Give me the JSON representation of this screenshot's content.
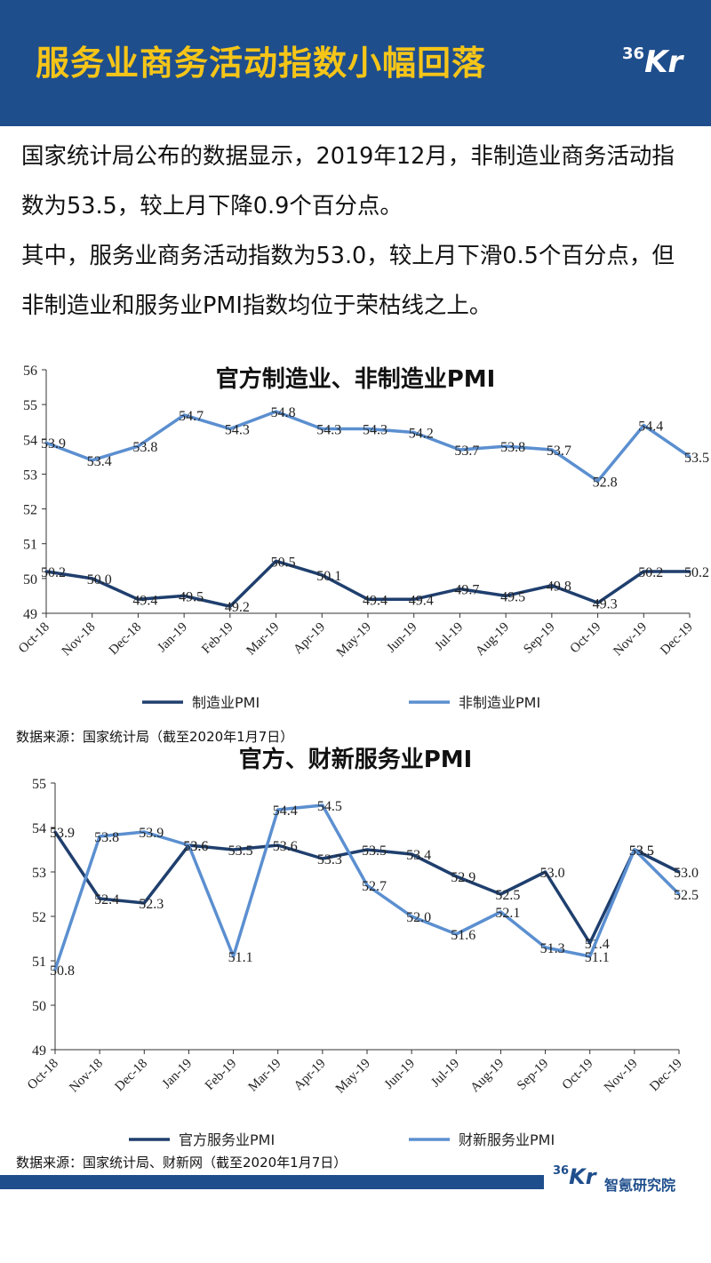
{
  "header": {
    "title": "服务业商务活动指数小幅回落",
    "logo_num": "36",
    "logo_letters": "Kr"
  },
  "intro": {
    "paragraph1": "国家统计局公布的数据显示，2019年12月，非制造业商务活动指数为53.5，较上月下降0.9个百分点。",
    "paragraph2": "其中，服务业商务活动指数为53.0，较上月下滑0.5个百分点，但非制造业和服务业PMI指数均位于荣枯线之上。"
  },
  "chart1_source": "数据来源：国家统计局（截至2020年1月7日）",
  "chart2_source": "数据来源：国家统计局、财新网（截至2020年1月7日）",
  "footer": {
    "logo_num": "36",
    "logo_letters": "Kr",
    "text": "智氪研究院"
  },
  "colors": {
    "header_bg": "#1f4e8c",
    "title": "#f5c518",
    "dark_series": "#1f3f6e",
    "light_series": "#5b8fd0"
  },
  "chart_data": [
    {
      "type": "line",
      "title": "官方制造业、非制造业PMI",
      "categories": [
        "Oct-18",
        "Nov-18",
        "Dec-18",
        "Jan-19",
        "Feb-19",
        "Mar-19",
        "Apr-19",
        "May-19",
        "Jun-19",
        "Jul-19",
        "Aug-19",
        "Sep-19",
        "Oct-19",
        "Nov-19",
        "Dec-19"
      ],
      "ylim": [
        49,
        56
      ],
      "yticks": [
        "49",
        "50",
        "51",
        "52",
        "53",
        "54",
        "55",
        "56"
      ],
      "legend_position": "bottom",
      "series": [
        {
          "name": "制造业PMI",
          "values": [
            50.2,
            50.0,
            49.4,
            49.5,
            49.2,
            50.5,
            50.1,
            49.4,
            49.4,
            49.7,
            49.5,
            49.8,
            49.3,
            50.2,
            50.2
          ],
          "labels": [
            "50.2",
            "50.0",
            "49.4",
            "49.5",
            "49.2",
            "50.5",
            "50.1",
            "49.4",
            "49.4",
            "49.7",
            "49.5",
            "49.8",
            "49.3",
            "50.2",
            "50.2"
          ]
        },
        {
          "name": "非制造业PMI",
          "values": [
            53.9,
            53.4,
            53.8,
            54.7,
            54.3,
            54.8,
            54.3,
            54.3,
            54.2,
            53.7,
            53.8,
            53.7,
            52.8,
            54.4,
            53.5
          ],
          "labels": [
            "53.9",
            "53.4",
            "53.8",
            "54.7",
            "54.3",
            "54.8",
            "54.3",
            "54.3",
            "54.2",
            "53.7",
            "53.8",
            "53.7",
            "52.8",
            "54.4",
            "53.5"
          ]
        }
      ]
    },
    {
      "type": "line",
      "title": "官方、财新服务业PMI",
      "categories": [
        "Oct-18",
        "Nov-18",
        "Dec-18",
        "Jan-19",
        "Feb-19",
        "Mar-19",
        "Apr-19",
        "May-19",
        "Jun-19",
        "Jul-19",
        "Aug-19",
        "Sep-19",
        "Oct-19",
        "Nov-19",
        "Dec-19"
      ],
      "ylim": [
        49,
        55
      ],
      "yticks": [
        "49",
        "50",
        "51",
        "52",
        "53",
        "54",
        "55"
      ],
      "legend_position": "bottom",
      "series": [
        {
          "name": "官方服务业PMI",
          "values": [
            53.9,
            52.4,
            52.3,
            53.6,
            53.5,
            53.6,
            53.3,
            53.5,
            53.4,
            52.9,
            52.5,
            53.0,
            51.4,
            53.5,
            53.0
          ],
          "labels": [
            "53.9",
            "52.4",
            "52.3",
            "53.6",
            "53.5",
            "53.6",
            "53.3",
            "53.5",
            "53.4",
            "52.9",
            "52.5",
            "53.0",
            "51.4",
            "53.5",
            "53.0"
          ]
        },
        {
          "name": "财新服务业PMI",
          "values": [
            50.8,
            53.8,
            53.9,
            53.6,
            51.1,
            54.4,
            54.5,
            52.7,
            52.0,
            51.6,
            52.1,
            51.3,
            51.1,
            53.5,
            52.5
          ],
          "labels": [
            "50.8",
            "53.8",
            "53.9",
            "53.6",
            "51.1",
            "54.4",
            "54.5",
            "52.7",
            "52.0",
            "51.6",
            "52.1",
            "51.3",
            "51.1",
            "53.5",
            "52.5"
          ]
        }
      ]
    }
  ]
}
